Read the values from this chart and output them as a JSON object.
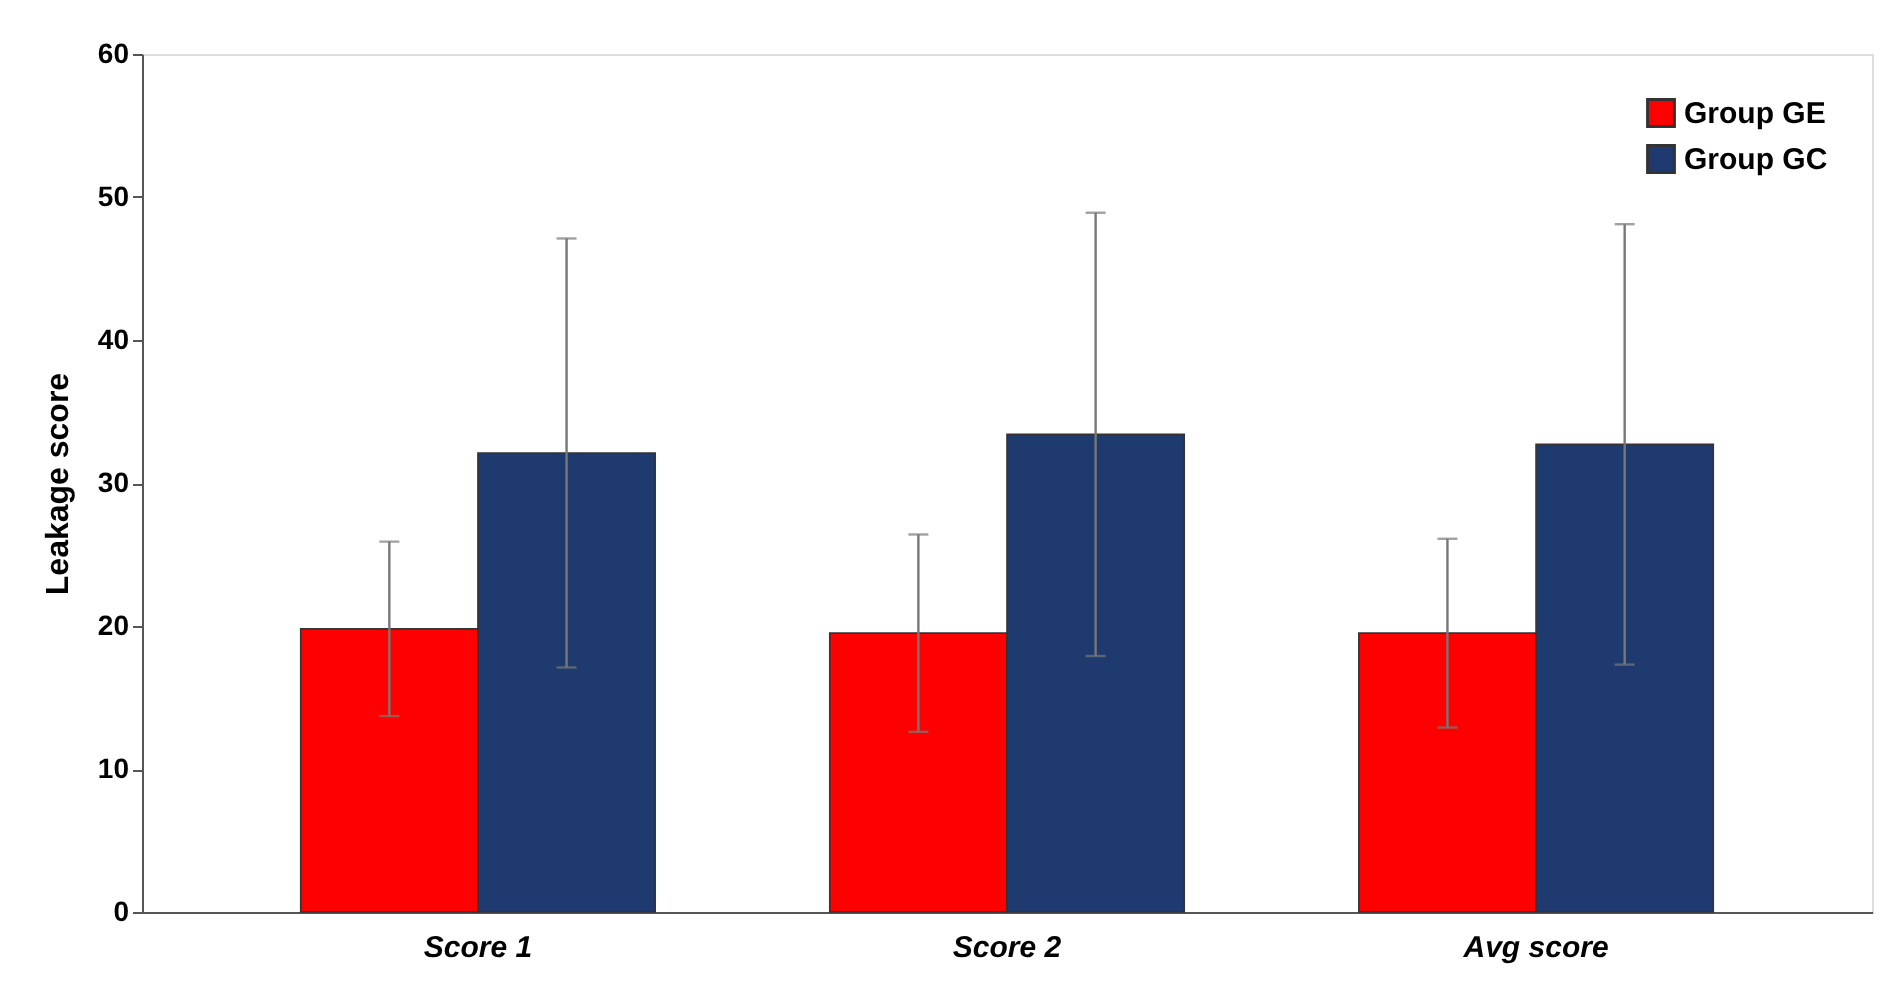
{
  "chart_data": {
    "type": "bar",
    "ylabel": "Leakage score",
    "categories": [
      "Score 1",
      "Score 2",
      "Avg score"
    ],
    "series": [
      {
        "name": "Group GE",
        "color": "#ff0000",
        "values": [
          19.8,
          19.5,
          19.5
        ],
        "errors": [
          6.1,
          6.9,
          6.6
        ]
      },
      {
        "name": "Group GC",
        "color": "#1f3a6e",
        "values": [
          32.1,
          33.4,
          32.7
        ],
        "errors": [
          15.0,
          15.5,
          15.4
        ]
      }
    ],
    "ylim": [
      0,
      60
    ],
    "yticks": [
      0,
      10,
      20,
      30,
      40,
      50,
      60
    ],
    "grid": false,
    "legend": "top right"
  }
}
